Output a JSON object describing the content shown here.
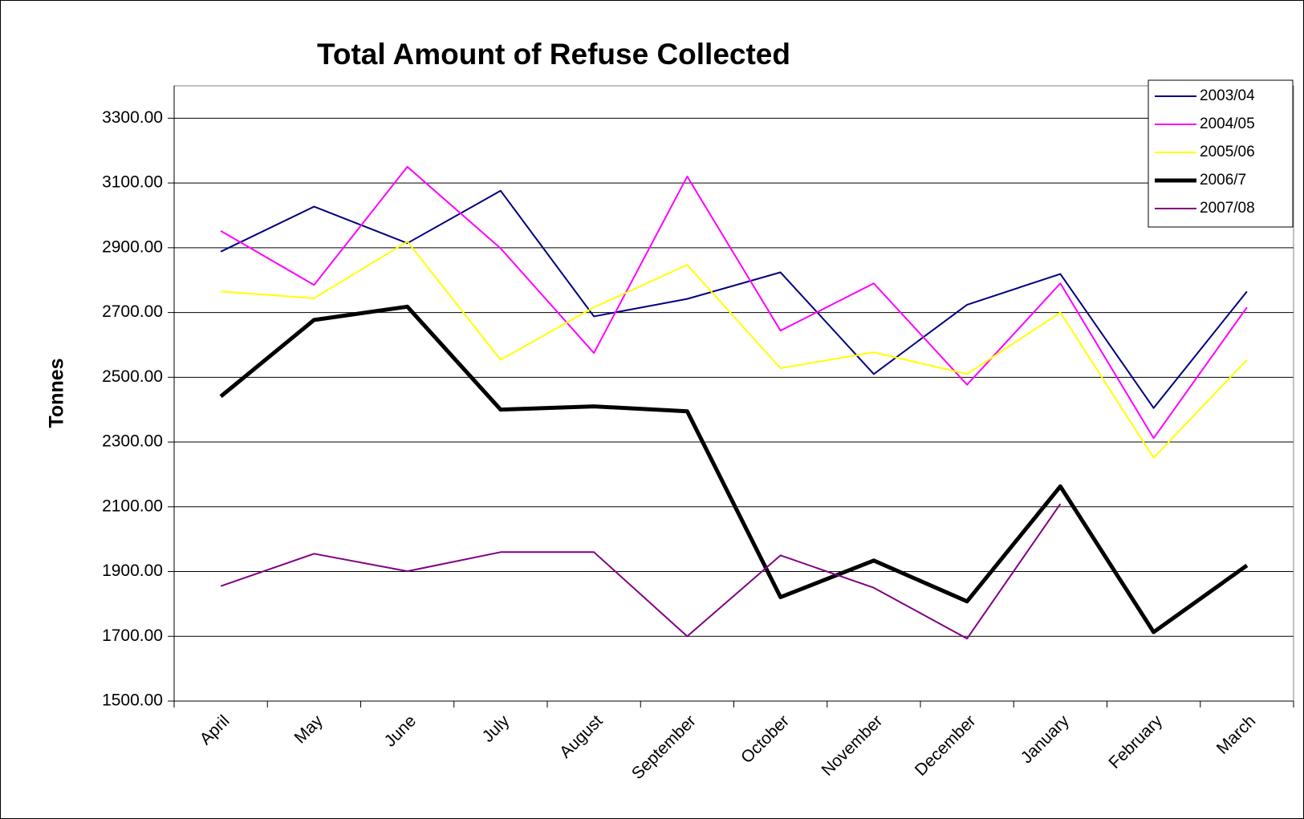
{
  "chart_data": {
    "type": "line",
    "title": "Total Amount of Refuse Collected",
    "y_label": "Tonnes",
    "categories": [
      "April",
      "May",
      "June",
      "July",
      "August",
      "September",
      "October",
      "November",
      "December",
      "January",
      "February",
      "March"
    ],
    "series": [
      {
        "name": "2003/04",
        "color": "#000080",
        "line_width": 2,
        "values": [
          2888,
          3027,
          2914,
          3076,
          2688,
          2742,
          2824,
          2510,
          2724,
          2819,
          2405,
          2765
        ]
      },
      {
        "name": "2004/05",
        "color": "#ff00ff",
        "line_width": 2,
        "values": [
          2952,
          2785,
          3150,
          2898,
          2575,
          3120,
          2644,
          2790,
          2477,
          2790,
          2312,
          2716
        ]
      },
      {
        "name": "2005/06",
        "color": "#ffff00",
        "line_width": 2,
        "values": [
          2765,
          2744,
          2919,
          2554,
          2716,
          2847,
          2528,
          2577,
          2510,
          2700,
          2251,
          2554
        ]
      },
      {
        "name": "2006/7",
        "color": "#000000",
        "line_width": 5,
        "values": [
          2441,
          2677,
          2718,
          2400,
          2410,
          2395,
          1821,
          1934,
          1808,
          2163,
          1713,
          1919
        ]
      },
      {
        "name": "2007/08",
        "color": "#800080",
        "line_width": 2,
        "values": [
          1855,
          1955,
          1901,
          1960,
          1960,
          1700,
          1950,
          1850,
          1693,
          2109,
          null,
          null
        ]
      }
    ],
    "ylim": [
      1500,
      3400
    ],
    "yticks": [
      {
        "value": 1500,
        "label": "1500.00"
      },
      {
        "value": 1700,
        "label": "1700.00"
      },
      {
        "value": 1900,
        "label": "1900.00"
      },
      {
        "value": 2100,
        "label": "2100.00"
      },
      {
        "value": 2300,
        "label": "2300.00"
      },
      {
        "value": 2500,
        "label": "2500.00"
      },
      {
        "value": 2700,
        "label": "2700.00"
      },
      {
        "value": 2900,
        "label": "2900.00"
      },
      {
        "value": 3100,
        "label": "3100.00"
      },
      {
        "value": 3300,
        "label": "3300.00"
      }
    ],
    "grid": true,
    "legend": "top-right"
  }
}
